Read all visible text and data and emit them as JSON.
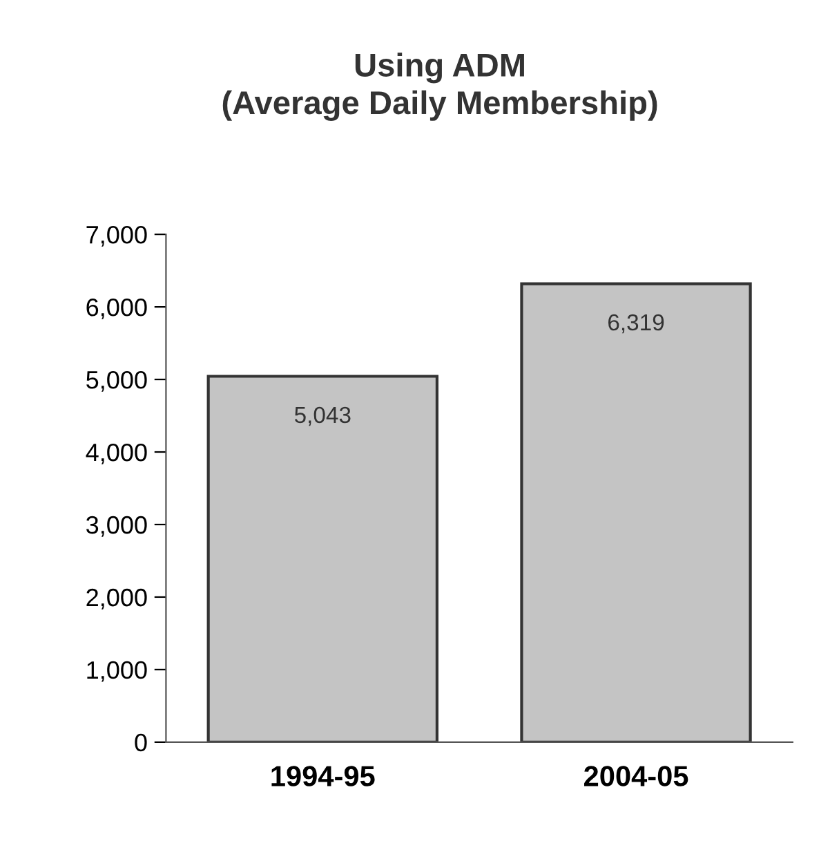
{
  "chart_data": {
    "type": "bar",
    "title": "Using ADM\n(Average Daily Membership)",
    "categories": [
      "1994-95",
      "2004-05"
    ],
    "values": [
      5043,
      6319
    ],
    "value_labels": [
      "5,043",
      "6,319"
    ],
    "color": "#c4c4c4",
    "ylim": [
      0,
      7000
    ],
    "yticks": [
      {
        "value": 0,
        "label": "0"
      },
      {
        "value": 1000,
        "label": "1,000"
      },
      {
        "value": 2000,
        "label": "2,000"
      },
      {
        "value": 3000,
        "label": "3,000"
      },
      {
        "value": 4000,
        "label": "4,000"
      },
      {
        "value": 5000,
        "label": "5,000"
      },
      {
        "value": 6000,
        "label": "6,000"
      },
      {
        "value": 7000,
        "label": "7,000"
      }
    ],
    "grid": false,
    "legend": false
  }
}
